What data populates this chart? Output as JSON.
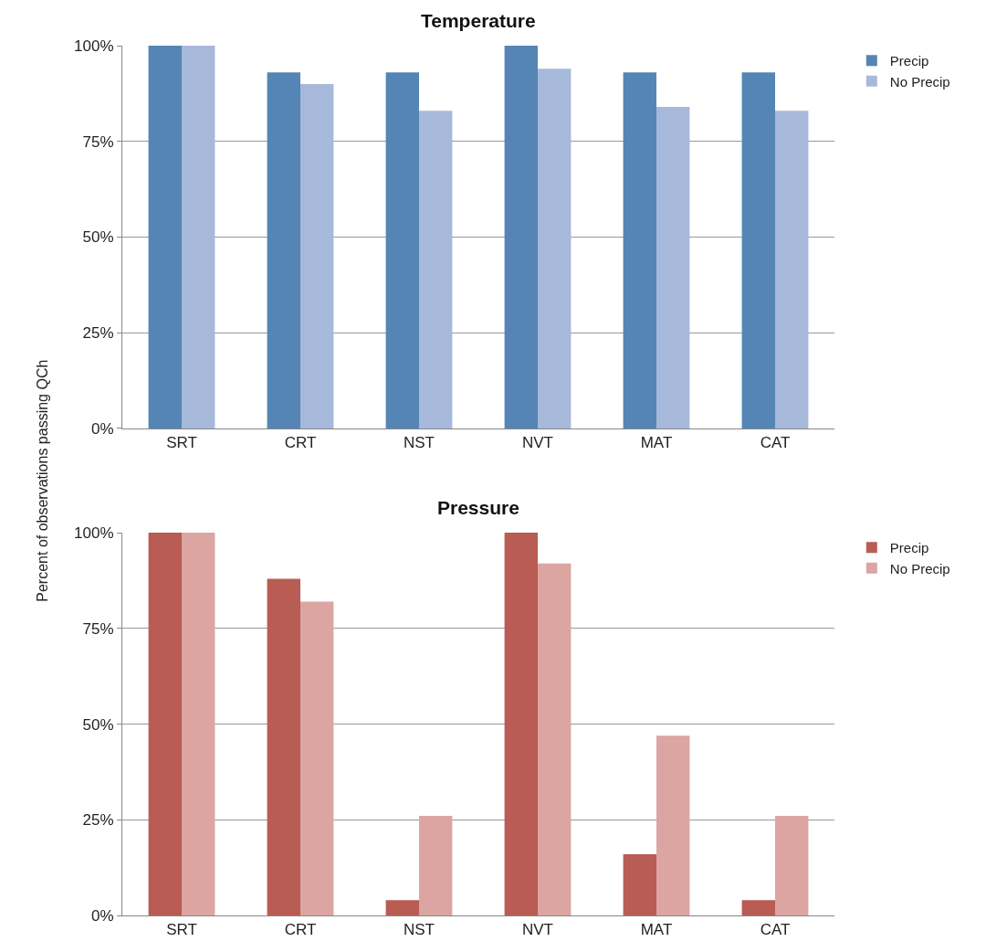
{
  "chart_data": [
    {
      "type": "bar",
      "title": "Temperature",
      "ylabel": "Percent of observations passing QCh",
      "categories": [
        "SRT",
        "CRT",
        "NST",
        "NVT",
        "MAT",
        "CAT"
      ],
      "series": [
        {
          "name": "Precip",
          "color": "#5585b5",
          "values": [
            100,
            93,
            93,
            100,
            93,
            93
          ]
        },
        {
          "name": "No Precip",
          "color": "#a7b9da",
          "values": [
            100,
            90,
            83,
            94,
            84,
            83
          ]
        }
      ],
      "ylim": [
        0,
        100
      ],
      "yticks": [
        {
          "value": 0,
          "label": "0%"
        },
        {
          "value": 25,
          "label": "25%"
        },
        {
          "value": 50,
          "label": "50%"
        },
        {
          "value": 75,
          "label": "75%"
        },
        {
          "value": 100,
          "label": "100%"
        }
      ],
      "grid": "y",
      "legend": "top right"
    },
    {
      "type": "bar",
      "title": "Pressure",
      "categories": [
        "SRT",
        "CRT",
        "NST",
        "NVT",
        "MAT",
        "CAT"
      ],
      "series": [
        {
          "name": "Precip",
          "color": "#b95c53",
          "values": [
            100,
            88,
            4,
            100,
            16,
            4
          ]
        },
        {
          "name": "No Precip",
          "color": "#dca5a2",
          "values": [
            100,
            82,
            26,
            92,
            47,
            26
          ]
        }
      ],
      "ylim": [
        0,
        100
      ],
      "yticks": [
        {
          "value": 0,
          "label": "0%"
        },
        {
          "value": 25,
          "label": "25%"
        },
        {
          "value": 50,
          "label": "50%"
        },
        {
          "value": 75,
          "label": "75%"
        },
        {
          "value": 100,
          "label": "100%"
        }
      ],
      "grid": "y",
      "legend": "top right"
    }
  ]
}
